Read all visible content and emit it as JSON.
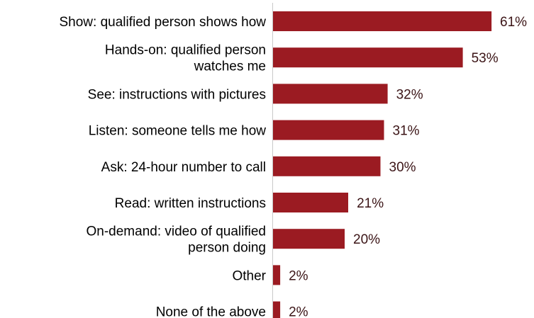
{
  "chart_data": {
    "type": "bar",
    "orientation": "horizontal",
    "categories": [
      [
        "Show: qualified person shows how"
      ],
      [
        "Hands-on: qualified person",
        "watches me"
      ],
      [
        "See: instructions with pictures"
      ],
      [
        "Listen: someone tells me how"
      ],
      [
        "Ask: 24-hour number to call"
      ],
      [
        "Read: written instructions"
      ],
      [
        "On-demand: video of qualified",
        "person doing"
      ],
      [
        "Other"
      ],
      [
        "None of the above"
      ]
    ],
    "values": [
      61,
      53,
      32,
      31,
      30,
      21,
      20,
      2,
      2
    ],
    "value_labels": [
      "61%",
      "53%",
      "32%",
      "31%",
      "30%",
      "21%",
      "20%",
      "2%",
      "2%"
    ],
    "title": "",
    "xlabel": "",
    "ylabel": "",
    "grid": false,
    "legend": "none",
    "colors": {
      "bar": "#9b1b22",
      "value_text": "#3b1416",
      "axis": "#c8c8c8"
    }
  }
}
